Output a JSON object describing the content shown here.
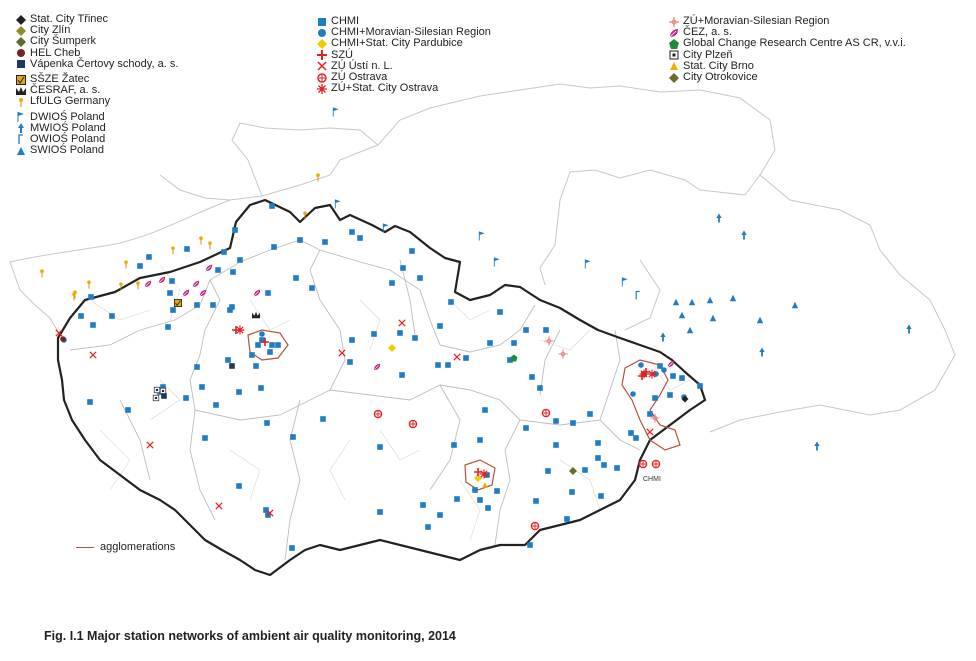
{
  "legend_left": [
    {
      "label": "Stat. City Třinec",
      "icon": "black-diamond"
    },
    {
      "label": "City Zlín",
      "icon": "olive-diamond"
    },
    {
      "label": "City Šumperk",
      "icon": "darkolive-diamond"
    },
    {
      "label": "HEL Cheb",
      "icon": "maroon-circle"
    },
    {
      "label": "Vápenka Čertovy schody, a. s.",
      "icon": "navy-square"
    },
    {
      "label": "SŠZE Žatec",
      "icon": "gold-square-check"
    },
    {
      "label": "ČESRAF, a. s.",
      "icon": "black-crown"
    },
    {
      "label": "LfULG Germany",
      "icon": "orange-pin"
    },
    {
      "label": "DWIOŚ Poland",
      "icon": "blue-flag"
    },
    {
      "label": "MWIOŚ Poland",
      "icon": "blue-arrow-up"
    },
    {
      "label": "OWIOŚ Poland",
      "icon": "blue-hook"
    },
    {
      "label": "SWIOŚ Poland",
      "icon": "blue-triangle"
    }
  ],
  "legend_mid": [
    {
      "label": "CHMI",
      "icon": "blue-square"
    },
    {
      "label": "CHMI+Moravian-Silesian Region",
      "icon": "blue-circle"
    },
    {
      "label": "CHMI+Stat. City Pardubice",
      "icon": "yellow-diamond"
    },
    {
      "label": "SZÚ",
      "icon": "red-cross"
    },
    {
      "label": "ZÚ Ústí n. L.",
      "icon": "red-x"
    },
    {
      "label": "ZÚ Ostrava",
      "icon": "red-circle-plus"
    },
    {
      "label": "ZÚ+Stat. City Ostrava",
      "icon": "red-asterisk"
    }
  ],
  "legend_right": [
    {
      "label": "ZÚ+Moravian-Silesian Region",
      "icon": "pink-cross"
    },
    {
      "label": "ČEZ, a. s.",
      "icon": "magenta-leaf"
    },
    {
      "label": "Global Change Research Centre AS CR, v.v.i.",
      "icon": "green-pentagon"
    },
    {
      "label": "City Plzeň",
      "icon": "square-dot"
    },
    {
      "label": "Stat. City Brno",
      "icon": "orange-triangle"
    },
    {
      "label": "City Otrokovice",
      "icon": "olive-diamond2"
    }
  ],
  "agglomerations_label": "agglomerations",
  "chmi_small_label": "CHMI",
  "caption": "Fig. I.1  Major station networks of ambient air quality monitoring, 2014",
  "colors": {
    "chmi": "#1f7dc4",
    "red": "#e32121",
    "border": "#222222",
    "region": "#c8c8c8",
    "agglo": "#b5533c"
  }
}
